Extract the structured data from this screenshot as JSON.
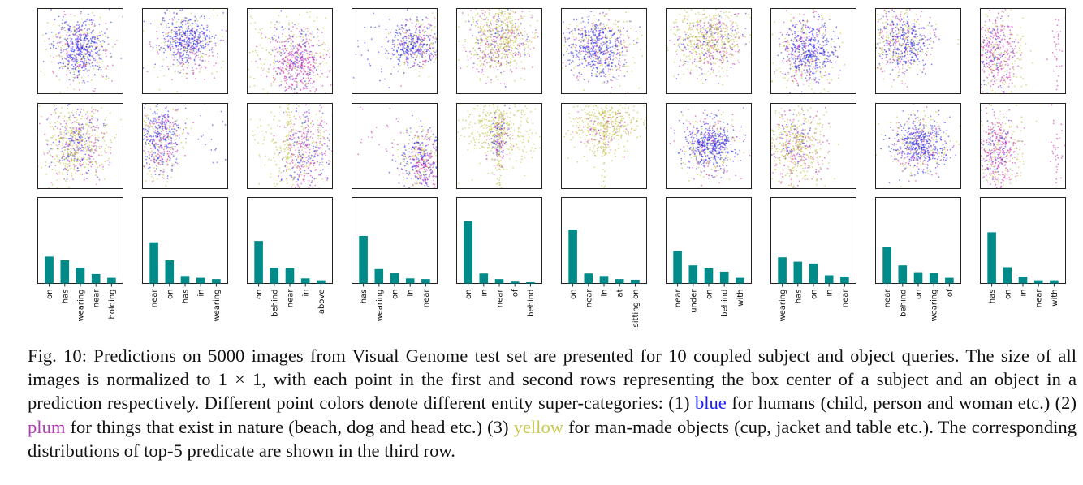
{
  "chart_data": {
    "type": "grid",
    "colors": {
      "humans": "#2222ee",
      "nature": "#cc22aa",
      "manmade": "#bbbb33",
      "bar": "#008b8b"
    },
    "panels": [
      {
        "subject_pattern": "center",
        "object_pattern": "yellow_broad",
        "bars": {
          "type": "bar",
          "categories": [
            "on",
            "has",
            "wearing",
            "near",
            "holding"
          ],
          "values": [
            0.43,
            0.37,
            0.25,
            0.15,
            0.09
          ]
        }
      },
      {
        "subject_pattern": "center_high",
        "object_pattern": "left_mixed",
        "bars": {
          "type": "bar",
          "categories": [
            "near",
            "on",
            "has",
            "in",
            "wearing"
          ],
          "values": [
            0.66,
            0.37,
            0.12,
            0.09,
            0.07
          ]
        }
      },
      {
        "subject_pattern": "plum_lower_right",
        "object_pattern": "stripe_right",
        "bars": {
          "type": "bar",
          "categories": [
            "on",
            "behind",
            "near",
            "in",
            "above"
          ],
          "values": [
            0.68,
            0.25,
            0.24,
            0.08,
            0.05
          ]
        }
      },
      {
        "subject_pattern": "right_mixed",
        "object_pattern": "lower_right",
        "bars": {
          "type": "bar",
          "categories": [
            "has",
            "wearing",
            "on",
            "in",
            "near"
          ],
          "values": [
            0.76,
            0.23,
            0.17,
            0.08,
            0.07
          ]
        }
      },
      {
        "subject_pattern": "yellow_top",
        "object_pattern": "yellow_stripe",
        "bars": {
          "type": "bar",
          "categories": [
            "on",
            "in",
            "near",
            "of",
            "behind"
          ],
          "values": [
            1.0,
            0.16,
            0.07,
            0.03,
            0.02
          ]
        }
      },
      {
        "subject_pattern": "blue_left",
        "object_pattern": "yellow_stripe_top",
        "bars": {
          "type": "bar",
          "categories": [
            "on",
            "near",
            "in",
            "at",
            "sitting on"
          ],
          "values": [
            0.86,
            0.16,
            0.12,
            0.07,
            0.06
          ]
        }
      },
      {
        "subject_pattern": "yellow_top",
        "object_pattern": "blue_center",
        "bars": {
          "type": "bar",
          "categories": [
            "near",
            "under",
            "on",
            "behind",
            "with"
          ],
          "values": [
            0.52,
            0.29,
            0.24,
            0.19,
            0.09
          ]
        }
      },
      {
        "subject_pattern": "blue_dense",
        "object_pattern": "yellow_center",
        "bars": {
          "type": "bar",
          "categories": [
            "wearing",
            "has",
            "on",
            "in",
            "near"
          ],
          "values": [
            0.42,
            0.35,
            0.32,
            0.13,
            0.11
          ]
        }
      },
      {
        "subject_pattern": "upper_left_mixed",
        "object_pattern": "blue_center",
        "bars": {
          "type": "bar",
          "categories": [
            "near",
            "behind",
            "on",
            "wearing",
            "of"
          ],
          "values": [
            0.59,
            0.29,
            0.18,
            0.17,
            0.09
          ]
        }
      },
      {
        "subject_pattern": "left_plum",
        "object_pattern": "left_plum",
        "bars": {
          "type": "bar",
          "categories": [
            "has",
            "on",
            "in",
            "near",
            "with"
          ],
          "values": [
            0.82,
            0.26,
            0.11,
            0.05,
            0.05
          ]
        }
      }
    ]
  },
  "caption": {
    "part1": "Fig. 10: Predictions on 5000 images from Visual Genome test set are presented for 10 coupled subject and object queries. The size of all images is normalized to 1 × 1, with each point in the first and second rows representing the box center of a subject and an object in a prediction respectively. Different point colors denote different entity super-categories: (1) ",
    "blue": "blue",
    "part2": " for humans (child, person and woman etc.) (2) ",
    "plum": "plum",
    "part3": " for things that exist in nature (beach, dog and head etc.) (3) ",
    "yellow": "yellow",
    "part4": " for man-made objects (cup, jacket and table etc.). The corresponding distributions of top-5 predicate are shown in the third row."
  }
}
